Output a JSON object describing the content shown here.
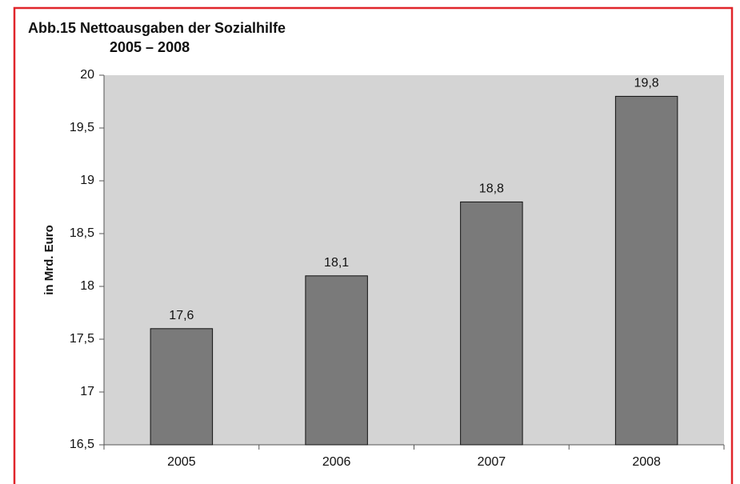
{
  "chart_data": {
    "type": "bar",
    "title": "Abb.15  Nettoausgaben der Sozialhilfe",
    "subtitle": "2005 – 2008",
    "y_label": "in Mrd. Euro",
    "categories": [
      "2005",
      "2006",
      "2007",
      "2008"
    ],
    "values": [
      17.6,
      18.1,
      18.8,
      19.8
    ],
    "value_labels": [
      "17,6",
      "18,1",
      "18,8",
      "19,8"
    ],
    "color": "#7a7a7a",
    "ylim": [
      16.5,
      20
    ],
    "yticks": [
      {
        "value": 16.5,
        "label": "16,5"
      },
      17,
      {
        "value": 17.5,
        "label": "17,5"
      },
      18,
      {
        "value": 18.5,
        "label": "18,5"
      },
      19,
      {
        "value": 19.5,
        "label": "19,5"
      },
      20
    ],
    "grid": false
  }
}
